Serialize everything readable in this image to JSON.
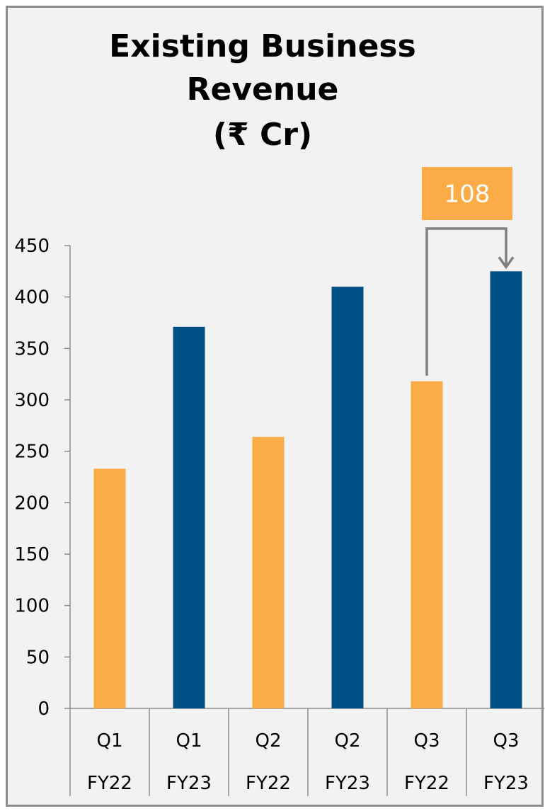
{
  "chart_data": {
    "type": "bar",
    "title": [
      "Existing Business",
      "Revenue",
      "(₹ Cr)"
    ],
    "categories": [
      {
        "quarter": "Q1",
        "year": "FY22"
      },
      {
        "quarter": "Q1",
        "year": "FY23"
      },
      {
        "quarter": "Q2",
        "year": "FY22"
      },
      {
        "quarter": "Q2",
        "year": "FY23"
      },
      {
        "quarter": "Q3",
        "year": "FY22"
      },
      {
        "quarter": "Q3",
        "year": "FY23"
      }
    ],
    "values": [
      233,
      371,
      264,
      410,
      318,
      425
    ],
    "bar_colors": [
      "#fbac47",
      "#004f86",
      "#fbac47",
      "#004f86",
      "#fbac47",
      "#004f86"
    ],
    "ylim": [
      0,
      450
    ],
    "yticks": [
      0,
      50,
      100,
      150,
      200,
      250,
      300,
      350,
      400,
      450
    ],
    "grid": false,
    "annotation": {
      "label": "108",
      "from_index": 4,
      "to_index": 5,
      "box_color": "#fbac47",
      "arrow_color": "#808080"
    }
  }
}
